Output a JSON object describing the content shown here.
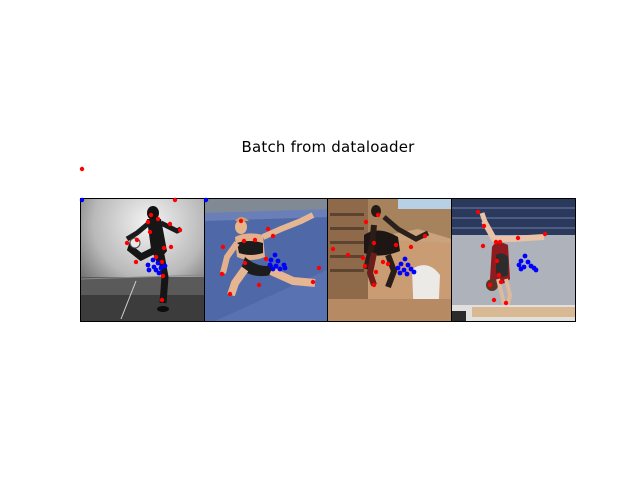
{
  "title": "Batch from dataloader",
  "colors": {
    "keypoint_red": "#ff0000",
    "keypoint_blue": "#0000ff",
    "frame": "#000000"
  },
  "panels": [
    {
      "name": "panel-1-soccer-kick"
    },
    {
      "name": "panel-2-floor-gymnast"
    },
    {
      "name": "panel-3-building-flip"
    },
    {
      "name": "panel-4-beam-gymnast"
    }
  ]
}
